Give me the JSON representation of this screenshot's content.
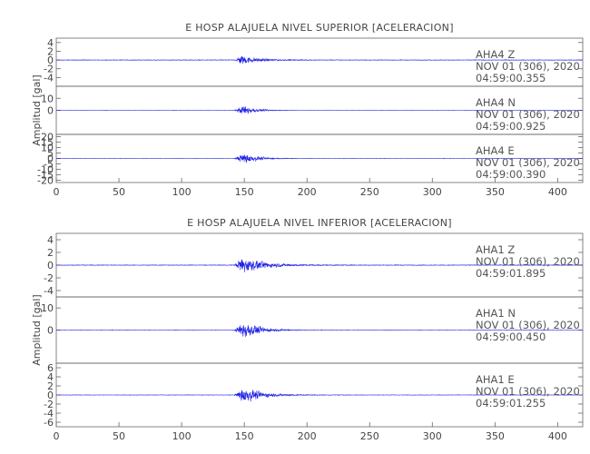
{
  "chart_data": [
    {
      "type": "line",
      "title": "E HOSP ALAJUELA NIVEL SUPERIOR [ACELERACION]",
      "ylabel": "Amplitud [gal]",
      "xlim": [
        0,
        420
      ],
      "x_ticks": [
        0,
        50,
        100,
        150,
        200,
        250,
        300,
        350,
        400
      ],
      "series_color": "#1f1fe6",
      "channels": [
        {
          "station": "AHA4",
          "component": "Z",
          "date": "NOV 01 (306), 2020",
          "time": "04:59:00.355",
          "ylim": [
            -6,
            5
          ],
          "y_ticks": [
            -4,
            -2,
            0,
            2,
            4
          ],
          "y_tick_labels": [
            "-4",
            "-2",
            "0",
            "2",
            "4"
          ],
          "onset": 143,
          "peak_time": 147,
          "peak_amp": 4,
          "noise": 0.2,
          "decay": 13
        },
        {
          "station": "AHA4",
          "component": "N",
          "date": "NOV 01 (306), 2020",
          "time": "04:59:00.925",
          "ylim": [
            -20,
            20
          ],
          "y_ticks": [
            0,
            10
          ],
          "y_tick_labels": [
            "0",
            "10"
          ],
          "onset": 142,
          "peak_time": 150,
          "peak_amp": 14,
          "noise": 0.3,
          "decay": 9
        },
        {
          "station": "AHA4",
          "component": "E",
          "date": "NOV 01 (306), 2020",
          "time": "04:59:00.390",
          "ylim": [
            -22,
            22
          ],
          "y_ticks": [
            -20,
            -15,
            -10,
            -5,
            0,
            5,
            10,
            15,
            20
          ],
          "y_tick_labels": [
            "-20",
            "-15",
            "-10",
            "-5",
            "0",
            "5",
            "10",
            "15",
            "20"
          ],
          "onset": 142,
          "peak_time": 150,
          "peak_amp": 18,
          "noise": 0.4,
          "decay": 10
        }
      ]
    },
    {
      "type": "line",
      "title": "E HOSP ALAJUELA NIVEL INFERIOR [ACELERACION]",
      "ylabel": "Amplitud [gal]",
      "xlim": [
        0,
        420
      ],
      "x_ticks": [
        0,
        50,
        100,
        150,
        200,
        250,
        300,
        350,
        400
      ],
      "series_color": "#1f1fe6",
      "channels": [
        {
          "station": "AHA1",
          "component": "Z",
          "date": "NOV 01 (306), 2020",
          "time": "04:59:01.895",
          "ylim": [
            -5,
            5
          ],
          "y_ticks": [
            -4,
            -2,
            0,
            2,
            4
          ],
          "y_tick_labels": [
            "-4",
            "-2",
            "0",
            "2",
            "4"
          ],
          "onset": 142,
          "peak_time": 148,
          "peak_amp": 4.5,
          "noise": 0.15,
          "decay": 18
        },
        {
          "station": "AHA1",
          "component": "N",
          "date": "NOV 01 (306), 2020",
          "time": "04:59:00.450",
          "ylim": [
            -15,
            15
          ],
          "y_ticks": [
            0,
            10
          ],
          "y_tick_labels": [
            "0",
            "10"
          ],
          "onset": 142,
          "peak_time": 150,
          "peak_amp": 14,
          "noise": 0.25,
          "decay": 12
        },
        {
          "station": "AHA1",
          "component": "E",
          "date": "NOV 01 (306), 2020",
          "time": "04:59:01.255",
          "ylim": [
            -7,
            7
          ],
          "y_ticks": [
            -6,
            -4,
            -2,
            0,
            2,
            4,
            6
          ],
          "y_tick_labels": [
            "-6",
            "-4",
            "-2",
            "0",
            "2",
            "4",
            "6"
          ],
          "onset": 142,
          "peak_time": 149,
          "peak_amp": 6,
          "noise": 0.15,
          "decay": 15
        }
      ]
    }
  ]
}
